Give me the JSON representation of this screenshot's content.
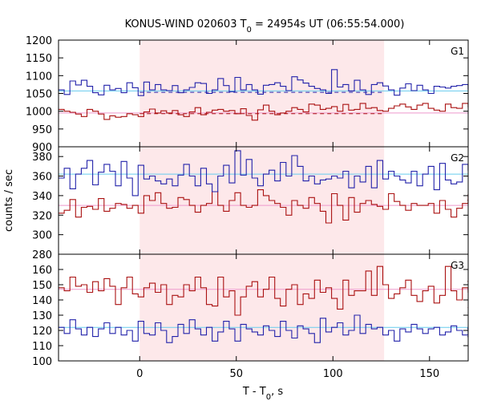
{
  "chart_data": {
    "type": "line",
    "title_main": "KONUS-WIND 020603 T",
    "title_sub": "0",
    "title_rest": " = 24954s UT (06:55:54.000)",
    "xlabel_main": "T - T",
    "xlabel_sub": "0",
    "xlabel_rest": ", s",
    "ylabel": "counts / sec",
    "xlim": [
      -42,
      170
    ],
    "xticks": [
      "0",
      "50",
      "100",
      "150"
    ],
    "xtick_values": [
      0,
      50,
      100,
      150
    ],
    "highlight": {
      "x0": 0,
      "x1": 126.5,
      "color": "#fde8ea"
    },
    "bin_width": 2.944,
    "colors": {
      "blue": "#2222aa",
      "red": "#aa1111",
      "cyan_bg": "#66ccee",
      "pink_bg": "#ee99cc",
      "frame": "#000000"
    },
    "panels": [
      {
        "label": "G1",
        "ylim": [
          900,
          1200
        ],
        "yticks": [
          "900",
          "950",
          "1000",
          "1050",
          "1100",
          "1150",
          "1200"
        ],
        "ytick_values": [
          900,
          950,
          1000,
          1050,
          1100,
          1150,
          1200
        ],
        "blue_bg": 1057,
        "red_bg": 995,
        "blue_mean_dashed": 1053,
        "red_mean_dashed": 993,
        "blue": [
          1060,
          1047,
          1085,
          1074,
          1087,
          1070,
          1052,
          1046,
          1073,
          1060,
          1064,
          1052,
          1080,
          1066,
          1044,
          1082,
          1060,
          1075,
          1060,
          1058,
          1072,
          1052,
          1060,
          1067,
          1080,
          1078,
          1050,
          1060,
          1092,
          1072,
          1055,
          1095,
          1060,
          1075,
          1060,
          1048,
          1073,
          1075,
          1080,
          1070,
          1058,
          1097,
          1088,
          1079,
          1070,
          1064,
          1060,
          1050,
          1117,
          1068,
          1075,
          1057,
          1087,
          1060,
          1047,
          1075,
          1080,
          1071,
          1060,
          1045,
          1065,
          1077,
          1058,
          1073,
          1060,
          1050,
          1070,
          1068,
          1065,
          1070,
          1072,
          1075,
          1062,
          1060,
          1052,
          1045,
          1068,
          1070,
          1056,
          1050,
          1072,
          1115,
          1075,
          1062,
          1070,
          1074,
          1066,
          1072,
          1060,
          1080,
          1076,
          1070,
          1082,
          1086,
          1080,
          1070,
          1040,
          1055,
          1066,
          1052,
          1060,
          1055,
          1048,
          1062,
          1060,
          1072,
          1085,
          1090,
          1079,
          1070,
          1065,
          1060,
          1075,
          1080,
          1060,
          1052,
          1065,
          1060,
          1066,
          1070,
          1071,
          1060
        ],
        "red": [
          1005,
          1000,
          997,
          992,
          985,
          1005,
          1000,
          992,
          977,
          987,
          983,
          985,
          993,
          990,
          985,
          998,
          1006,
          995,
          1001,
          995,
          1002,
          990,
          985,
          998,
          1010,
          990,
          997,
          1003,
          1005,
          1000,
          1002,
          993,
          1007,
          988,
          975,
          1004,
          1017,
          1000,
          990,
          995,
          1000,
          1010,
          1005,
          998,
          1020,
          1017,
          1005,
          1008,
          1013,
          1000,
          1019,
          1003,
          1005,
          1022,
          1008,
          1010,
          1002,
          1000,
          1008,
          1015,
          1020,
          1012,
          1005,
          1017,
          1022,
          1008,
          1003,
          1000,
          1020,
          1010,
          1008,
          1022,
          1012,
          1005,
          1013,
          1017,
          1025,
          1021,
          1015,
          1003,
          1017,
          1003,
          995,
          1010,
          1007,
          1023,
          1008,
          1005,
          1017,
          1027,
          1013,
          1020,
          1003,
          1017,
          1025,
          1020,
          1031,
          1023,
          1020,
          1000,
          985,
          1005,
          1000,
          1022,
          1012,
          1005,
          990,
          1000,
          990,
          1008,
          988,
          1018,
          990,
          1000,
          985,
          975,
          997,
          992,
          995,
          987,
          992,
          990
        ]
      },
      {
        "label": "G2",
        "ylim": [
          280,
          390
        ],
        "yticks": [
          "280",
          "300",
          "320",
          "340",
          "360",
          "380"
        ],
        "ytick_values": [
          280,
          300,
          320,
          340,
          360,
          380
        ],
        "blue_bg": 362,
        "red_bg": 330,
        "blue": [
          358,
          368,
          347,
          362,
          368,
          376,
          351,
          364,
          372,
          365,
          350,
          375,
          358,
          340,
          371,
          357,
          360,
          355,
          352,
          357,
          350,
          361,
          372,
          360,
          350,
          368,
          352,
          344,
          360,
          371,
          353,
          386,
          361,
          377,
          358,
          350,
          362,
          366,
          355,
          374,
          360,
          381,
          370,
          355,
          360,
          352,
          356,
          357,
          360,
          358,
          365,
          348,
          360,
          354,
          370,
          348,
          376,
          357,
          365,
          360,
          356,
          353,
          365,
          350,
          362,
          370,
          346,
          373,
          356,
          352,
          354,
          372,
          366,
          360,
          348,
          345,
          357,
          362,
          351,
          357,
          364,
          370,
          352,
          360,
          380,
          365,
          358,
          345,
          356,
          361,
          360,
          368,
          348,
          358,
          344,
          375,
          358,
          354,
          363,
          360,
          371,
          345,
          360,
          376,
          365,
          355,
          357,
          361,
          359,
          371,
          362,
          344,
          358,
          370,
          358,
          362,
          350,
          356,
          366,
          362,
          355,
          360
        ],
        "red": [
          322,
          325,
          336,
          318,
          328,
          329,
          326,
          337,
          324,
          327,
          332,
          331,
          327,
          330,
          322,
          340,
          335,
          343,
          332,
          327,
          328,
          338,
          336,
          330,
          323,
          330,
          332,
          344,
          330,
          324,
          335,
          343,
          330,
          328,
          330,
          346,
          340,
          335,
          332,
          328,
          320,
          335,
          330,
          327,
          338,
          332,
          324,
          312,
          342,
          330,
          315,
          338,
          323,
          332,
          335,
          331,
          329,
          326,
          342,
          334,
          330,
          325,
          332,
          330,
          330,
          332,
          322,
          335,
          326,
          318,
          327,
          332,
          341,
          335,
          326,
          330,
          333,
          328,
          332,
          328,
          343,
          330,
          330,
          322,
          330,
          323,
          340,
          338,
          346,
          336,
          337,
          316,
          332,
          338,
          325,
          334,
          321,
          314,
          330,
          335,
          332,
          322,
          326,
          340,
          330,
          315,
          323,
          335,
          330,
          328,
          325,
          314,
          327,
          330,
          332,
          328,
          333,
          330,
          329,
          327,
          331,
          332
        ]
      },
      {
        "label": "G3",
        "ylim": [
          100,
          170
        ],
        "yticks": [
          "100",
          "110",
          "120",
          "130",
          "140",
          "150",
          "160"
        ],
        "ytick_values": [
          100,
          110,
          120,
          130,
          140,
          150,
          160
        ],
        "blue_bg": 122,
        "red_bg": 147,
        "blue": [
          122,
          118,
          127,
          121,
          117,
          122,
          116,
          121,
          125,
          118,
          122,
          117,
          120,
          113,
          126,
          118,
          117,
          125,
          120,
          112,
          116,
          124,
          118,
          127,
          121,
          117,
          122,
          113,
          119,
          126,
          121,
          113,
          124,
          121,
          119,
          117,
          123,
          120,
          116,
          126,
          120,
          115,
          123,
          121,
          118,
          112,
          128,
          119,
          122,
          125,
          117,
          120,
          130,
          118,
          124,
          121,
          122,
          117,
          120,
          113,
          121,
          119,
          124,
          121,
          118,
          121,
          122,
          117,
          119,
          123,
          120,
          117,
          122,
          121,
          116,
          123,
          120,
          118,
          126,
          118,
          117,
          122,
          121,
          118,
          123,
          121,
          119,
          117,
          122,
          121,
          120,
          119,
          114,
          123,
          121,
          118,
          126,
          121,
          119,
          123,
          120,
          118,
          124,
          121,
          127,
          118,
          123,
          121,
          119,
          122,
          118,
          121,
          130,
          121,
          117,
          122,
          120,
          118,
          124,
          121,
          117,
          119
        ],
        "red": [
          148,
          146,
          155,
          149,
          150,
          145,
          152,
          146,
          154,
          149,
          137,
          148,
          155,
          144,
          142,
          148,
          151,
          145,
          150,
          137,
          143,
          142,
          150,
          146,
          155,
          148,
          137,
          136,
          155,
          142,
          146,
          130,
          142,
          149,
          152,
          142,
          147,
          155,
          141,
          136,
          147,
          150,
          137,
          144,
          141,
          153,
          145,
          148,
          141,
          134,
          153,
          143,
          146,
          146,
          159,
          143,
          162,
          150,
          141,
          144,
          148,
          153,
          143,
          139,
          146,
          149,
          138,
          143,
          162,
          146,
          140,
          148,
          145,
          135,
          152,
          143,
          146,
          139,
          150,
          144,
          131,
          147,
          140,
          145,
          150,
          142,
          146,
          162,
          141,
          147,
          140,
          152,
          150,
          137,
          149,
          146,
          142,
          150,
          146,
          138,
          145,
          147,
          143,
          144,
          150,
          156,
          140,
          151,
          153,
          145,
          138,
          151,
          146,
          149,
          136,
          145,
          148,
          140,
          150,
          144,
          152,
          147
        ]
      }
    ]
  }
}
